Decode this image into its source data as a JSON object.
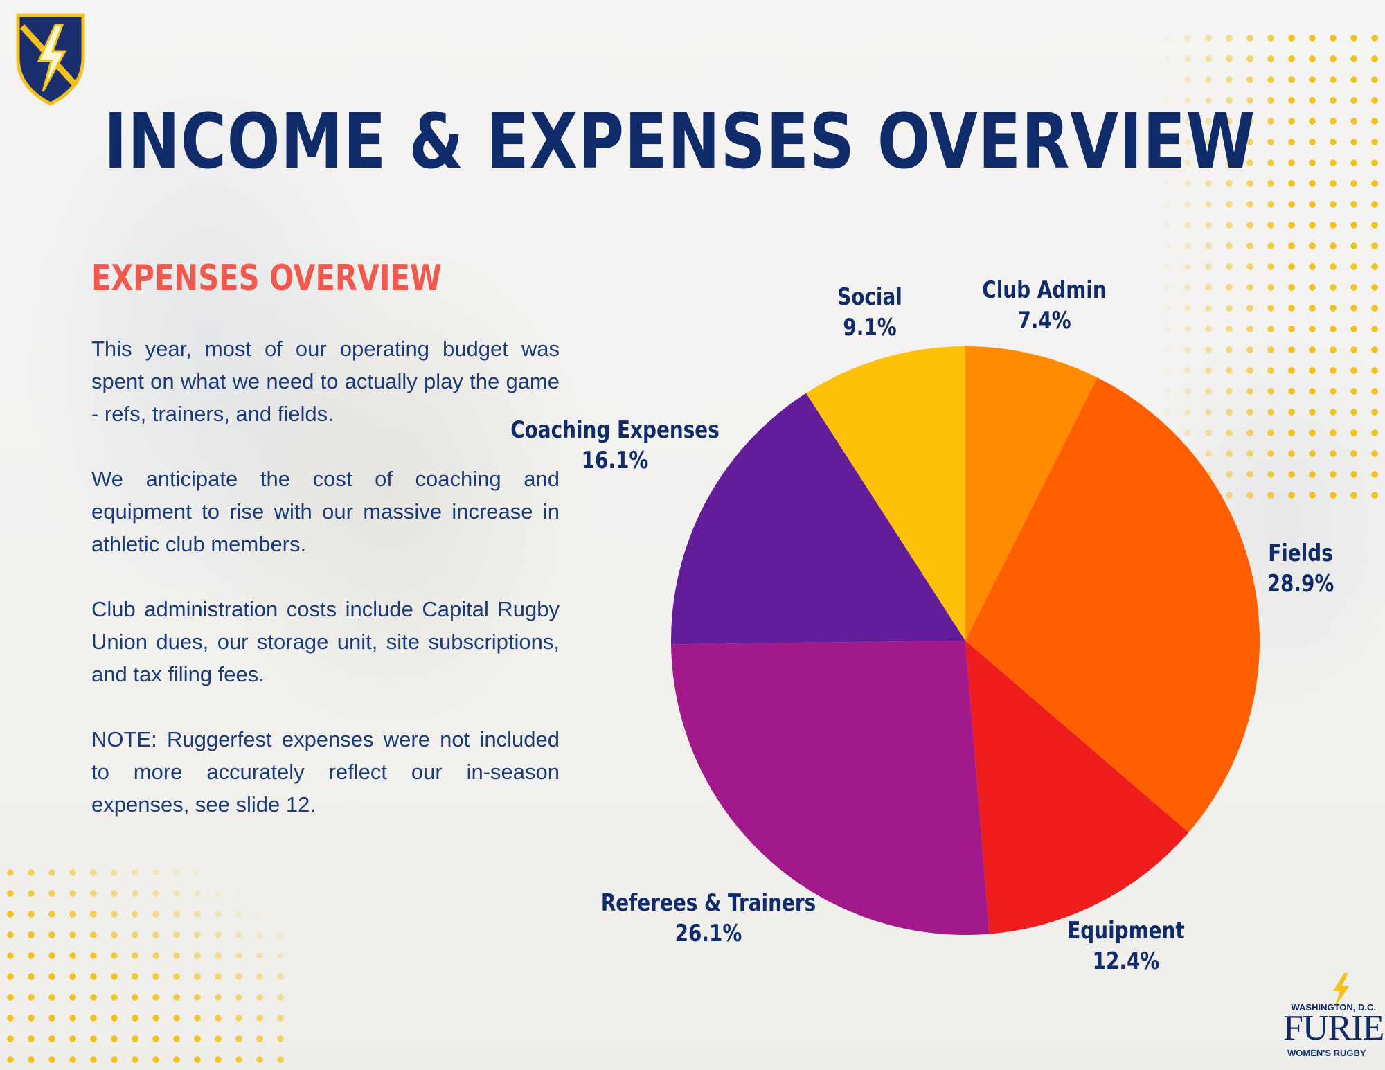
{
  "slide": {
    "title": "INCOME & EXPENSES OVERVIEW",
    "section_title": "EXPENSES OVERVIEW",
    "paragraphs": [
      "This year, most of our operating budget was spent on what we need to actually play the game - refs, trainers, and fields.",
      "We anticipate the cost of coaching and equipment to rise with our massive increase in athletic club members.",
      "Club administration costs include Capital Rugby Union dues, our storage unit, site subscriptions, and tax filing fees.",
      "NOTE: Ruggerfest expenses were not included to more accurately reflect our in-season expenses, see slide 12."
    ]
  },
  "brand": {
    "city": "WASHINGTON, D.C.",
    "name": "FURIES",
    "sub": "WOMEN'S RUGBY"
  },
  "icons": [
    "shield-lightning-logo-icon",
    "lightning-bolt-icon"
  ],
  "colors": {
    "title": "#102b6a",
    "section_title": "#f05a4e",
    "dots": "#f2c21a"
  },
  "chart_data": {
    "type": "pie",
    "title": "",
    "unit": "%",
    "slices": [
      {
        "label": "Club Admin",
        "value": 7.4,
        "display": "7.4%",
        "color": "#ff8c00"
      },
      {
        "label": "Fields",
        "value": 28.9,
        "display": "28.9%",
        "color": "#ff5f00"
      },
      {
        "label": "Equipment",
        "value": 12.4,
        "display": "12.4%",
        "color": "#ee1c1c"
      },
      {
        "label": "Referees & Trainers",
        "value": 26.1,
        "display": "26.1%",
        "color": "#a1198b"
      },
      {
        "label": "Coaching Expenses",
        "value": 16.1,
        "display": "16.1%",
        "color": "#631d9b"
      },
      {
        "label": "Social",
        "value": 9.1,
        "display": "9.1%",
        "color": "#ffc107"
      }
    ],
    "start": "12 o'clock",
    "direction": "clockwise",
    "legend": "none (labels outside slices)"
  }
}
